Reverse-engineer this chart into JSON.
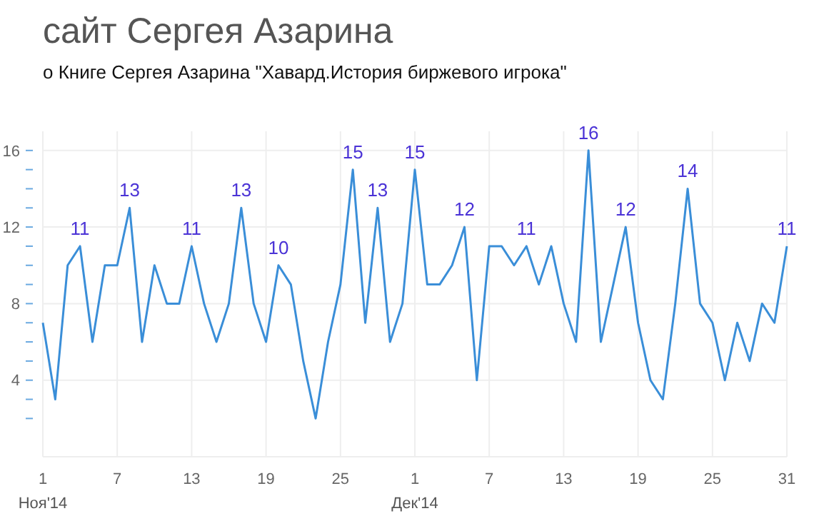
{
  "chart_data": {
    "type": "line",
    "title": "сайт Сергея Азарина",
    "subtitle": "о Книге Сергея Азарина \"Хавард.История биржевого игрока\"",
    "x": [
      "2014-11-01",
      "2014-11-02",
      "2014-11-03",
      "2014-11-04",
      "2014-11-05",
      "2014-11-06",
      "2014-11-07",
      "2014-11-08",
      "2014-11-09",
      "2014-11-10",
      "2014-11-11",
      "2014-11-12",
      "2014-11-13",
      "2014-11-14",
      "2014-11-15",
      "2014-11-16",
      "2014-11-17",
      "2014-11-18",
      "2014-11-19",
      "2014-11-20",
      "2014-11-21",
      "2014-11-22",
      "2014-11-23",
      "2014-11-24",
      "2014-11-25",
      "2014-11-26",
      "2014-11-27",
      "2014-11-28",
      "2014-11-29",
      "2014-11-30",
      "2014-12-01",
      "2014-12-02",
      "2014-12-03",
      "2014-12-04",
      "2014-12-05",
      "2014-12-06",
      "2014-12-07",
      "2014-12-08",
      "2014-12-09",
      "2014-12-10",
      "2014-12-11",
      "2014-12-12",
      "2014-12-13",
      "2014-12-14",
      "2014-12-15",
      "2014-12-16",
      "2014-12-17",
      "2014-12-18",
      "2014-12-19",
      "2014-12-20",
      "2014-12-21",
      "2014-12-22",
      "2014-12-23",
      "2014-12-24",
      "2014-12-25",
      "2014-12-26",
      "2014-12-27",
      "2014-12-28",
      "2014-12-29",
      "2014-12-30",
      "2014-12-31"
    ],
    "series": [
      {
        "color": "#3a8ed8",
        "values": [
          7,
          3,
          10,
          11,
          6,
          10,
          10,
          13,
          6,
          10,
          8,
          8,
          11,
          8,
          6,
          8,
          13,
          8,
          6,
          10,
          9,
          5,
          2,
          6,
          9,
          15,
          7,
          13,
          6,
          8,
          15,
          9,
          9,
          10,
          12,
          4,
          11,
          11,
          10,
          11,
          9,
          11,
          8,
          6,
          16,
          6,
          9,
          12,
          7,
          4,
          3,
          8,
          14,
          8,
          7,
          4,
          7,
          5,
          8,
          7,
          11
        ],
        "value_labels": [
          null,
          null,
          null,
          "11",
          null,
          null,
          null,
          "13",
          null,
          null,
          null,
          null,
          "11",
          null,
          null,
          null,
          "13",
          null,
          null,
          "10",
          null,
          null,
          null,
          null,
          null,
          "15",
          null,
          "13",
          null,
          null,
          "15",
          null,
          null,
          null,
          "12",
          null,
          null,
          null,
          null,
          "11",
          null,
          null,
          null,
          null,
          "16",
          null,
          null,
          "12",
          null,
          null,
          null,
          null,
          "14",
          null,
          null,
          null,
          null,
          null,
          null,
          null,
          "11"
        ]
      }
    ],
    "xlim": [
      "2014-11-01",
      "2014-12-31"
    ],
    "xticks": [
      {
        "value": "2014-11-01",
        "label": "1\nНоя'14"
      },
      {
        "value": "2014-11-07",
        "label": "7"
      },
      {
        "value": "2014-11-13",
        "label": "13"
      },
      {
        "value": "2014-11-19",
        "label": "19"
      },
      {
        "value": "2014-11-25",
        "label": "25"
      },
      {
        "value": "2014-12-01",
        "label": "1\nДек'14"
      },
      {
        "value": "2014-12-07",
        "label": "7"
      },
      {
        "value": "2014-12-13",
        "label": "13"
      },
      {
        "value": "2014-12-19",
        "label": "19"
      },
      {
        "value": "2014-12-25",
        "label": "25"
      },
      {
        "value": "2014-12-31",
        "label": "31"
      }
    ],
    "ylim": [
      0,
      17
    ],
    "yticks": [
      {
        "value": 2,
        "label": null
      },
      {
        "value": 3,
        "label": null
      },
      4,
      {
        "value": 5,
        "label": null
      },
      {
        "value": 6,
        "label": null
      },
      {
        "value": 7,
        "label": null
      },
      8,
      {
        "value": 9,
        "label": null
      },
      {
        "value": 10,
        "label": null
      },
      {
        "value": 11,
        "label": null
      },
      12,
      {
        "value": 13,
        "label": null
      },
      {
        "value": 14,
        "label": null
      },
      {
        "value": 15,
        "label": null
      },
      16
    ],
    "grid": true,
    "marker": "none",
    "line_style": "solid"
  }
}
